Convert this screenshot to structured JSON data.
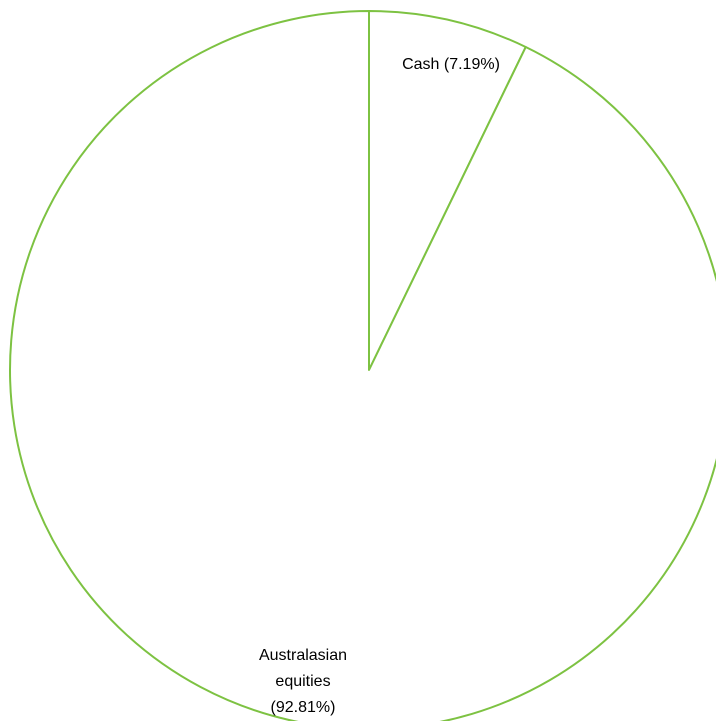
{
  "chart_data": {
    "type": "pie",
    "start_angle": "12 o'clock",
    "direction": "clockwise",
    "slice_fill": "#ffffff",
    "slice_stroke": "#7dc242",
    "slices": [
      {
        "label_lines": [
          "Cash (7.19%)"
        ],
        "category": "Cash",
        "value": 7.19,
        "unit": "%"
      },
      {
        "label_lines": [
          "Australasian",
          "equities",
          "(92.81%)"
        ],
        "category": "Australasian equities",
        "value": 92.81,
        "unit": "%"
      }
    ]
  }
}
